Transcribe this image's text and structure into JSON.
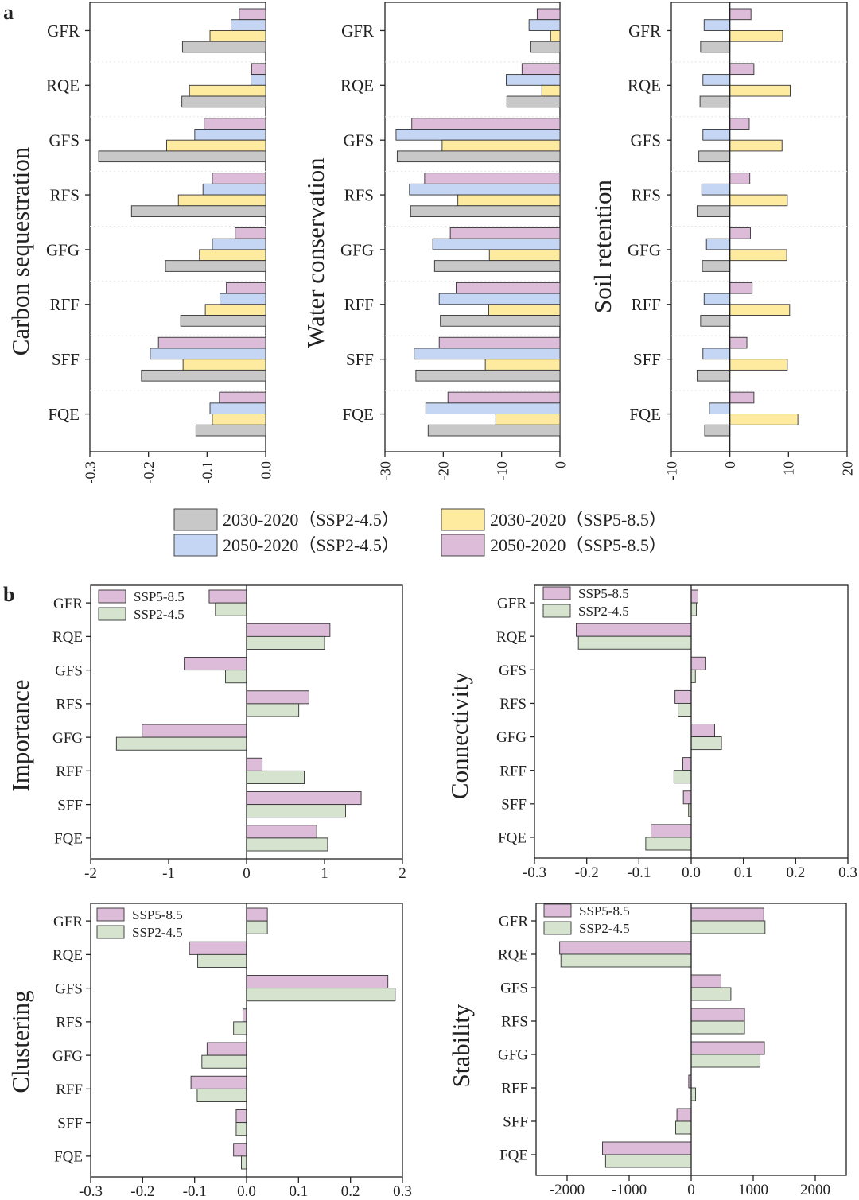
{
  "panel_labels": {
    "a": "a",
    "b": "b"
  },
  "legend_a": [
    {
      "label": "2030-2020（SSP2-4.5）",
      "color": "#c8c8c8"
    },
    {
      "label": "2030-2020（SSP5-8.5）",
      "color": "#ffeba0"
    },
    {
      "label": "2050-2020（SSP2-4.5）",
      "color": "#c5d6f5"
    },
    {
      "label": "2050-2020（SSP5-8.5）",
      "color": "#dcbcd8"
    }
  ],
  "chart_data": [
    {
      "type": "bar",
      "orientation": "horizontal",
      "panel": "a",
      "ylabel": "Carbon sequestration",
      "categories": [
        "GFR",
        "RQE",
        "GFS",
        "RFS",
        "GFG",
        "RFF",
        "SFF",
        "FQE"
      ],
      "xlim": [
        -0.3,
        0.0
      ],
      "xticks": [
        -0.3,
        -0.2,
        -0.1,
        0.0
      ],
      "xtick_labels": [
        "-0.3",
        "-0.2",
        "-0.1",
        "0.0"
      ],
      "series": [
        {
          "name": "2050-2020（SSP5-8.5）",
          "color": "#dcbcd8",
          "values": [
            -0.045,
            -0.024,
            -0.105,
            -0.091,
            -0.052,
            -0.067,
            -0.183,
            -0.079
          ]
        },
        {
          "name": "2050-2020（SSP2-4.5）",
          "color": "#c5d6f5",
          "values": [
            -0.059,
            -0.025,
            -0.121,
            -0.107,
            -0.091,
            -0.078,
            -0.197,
            -0.095
          ]
        },
        {
          "name": "2030-2020（SSP5-8.5）",
          "color": "#ffeba0",
          "values": [
            -0.095,
            -0.13,
            -0.169,
            -0.149,
            -0.113,
            -0.103,
            -0.141,
            -0.091
          ]
        },
        {
          "name": "2030-2020（SSP2-4.5）",
          "color": "#c8c8c8",
          "values": [
            -0.142,
            -0.143,
            -0.285,
            -0.229,
            -0.171,
            -0.145,
            -0.212,
            -0.119
          ]
        }
      ]
    },
    {
      "type": "bar",
      "orientation": "horizontal",
      "panel": "a",
      "ylabel": "Water conservation",
      "categories": [
        "GFR",
        "RQE",
        "GFS",
        "RFS",
        "GFG",
        "RFF",
        "SFF",
        "FQE"
      ],
      "xlim": [
        -30,
        0
      ],
      "xticks": [
        -30,
        -20,
        -10,
        0
      ],
      "xtick_labels": [
        "-30",
        "-20",
        "-10",
        "0"
      ],
      "series": [
        {
          "name": "2050-2020（SSP5-8.5）",
          "color": "#dcbcd8",
          "values": [
            -3.9,
            -6.5,
            -25.4,
            -23.2,
            -18.8,
            -17.8,
            -20.7,
            -19.2
          ]
        },
        {
          "name": "2050-2020（SSP2-4.5）",
          "color": "#c5d6f5",
          "values": [
            -5.3,
            -9.2,
            -28.1,
            -25.8,
            -21.8,
            -20.7,
            -25.0,
            -23.0
          ]
        },
        {
          "name": "2030-2020（SSP5-8.5）",
          "color": "#ffeba0",
          "values": [
            -1.6,
            -3.1,
            -20.2,
            -17.5,
            -12.1,
            -12.2,
            -12.8,
            -11.0
          ]
        },
        {
          "name": "2030-2020（SSP2-4.5）",
          "color": "#c8c8c8",
          "values": [
            -5.1,
            -9.1,
            -27.9,
            -25.6,
            -21.5,
            -20.5,
            -24.7,
            -22.6
          ]
        }
      ]
    },
    {
      "type": "bar",
      "orientation": "horizontal",
      "panel": "a",
      "ylabel": "Soil retention",
      "categories": [
        "GFR",
        "RQE",
        "GFS",
        "RFS",
        "GFG",
        "RFF",
        "SFF",
        "FQE"
      ],
      "xlim": [
        -10,
        20
      ],
      "xticks": [
        -10,
        0,
        10,
        20
      ],
      "xtick_labels": [
        "-10",
        "0",
        "10",
        "20"
      ],
      "series": [
        {
          "name": "2050-2020（SSP5-8.5）",
          "color": "#dcbcd8",
          "values": [
            3.6,
            4.1,
            3.3,
            3.4,
            3.5,
            3.8,
            2.9,
            4.1
          ]
        },
        {
          "name": "2050-2020（SSP2-4.5）",
          "color": "#c5d6f5",
          "values": [
            -4.4,
            -4.6,
            -4.6,
            -4.8,
            -4.0,
            -4.4,
            -4.6,
            -3.5
          ]
        },
        {
          "name": "2030-2020（SSP5-8.5）",
          "color": "#ffeba0",
          "values": [
            9.0,
            10.3,
            8.9,
            9.8,
            9.7,
            10.2,
            9.8,
            11.6
          ]
        },
        {
          "name": "2030-2020（SSP2-4.5）",
          "color": "#c8c8c8",
          "values": [
            -5.0,
            -5.1,
            -5.3,
            -5.6,
            -4.7,
            -5.0,
            -5.6,
            -4.3
          ]
        }
      ]
    },
    {
      "type": "bar",
      "orientation": "horizontal",
      "panel": "b",
      "ylabel": "Importance",
      "categories": [
        "GFR",
        "RQE",
        "GFS",
        "RFS",
        "GFG",
        "RFF",
        "SFF",
        "FQE"
      ],
      "xlim": [
        -2,
        2
      ],
      "xticks": [
        -2,
        -1,
        0,
        1,
        2
      ],
      "xtick_labels": [
        "-2",
        "-1",
        "0",
        "1",
        "2"
      ],
      "legend": [
        "SSP5-8.5",
        "SSP2-4.5"
      ],
      "series": [
        {
          "name": "SSP5-8.5",
          "color": "#dcbcd8",
          "values": [
            -0.48,
            1.07,
            -0.8,
            0.8,
            -1.34,
            0.2,
            1.47,
            0.9
          ]
        },
        {
          "name": "SSP2-4.5",
          "color": "#d5e3cf",
          "values": [
            -0.4,
            1.0,
            -0.27,
            0.67,
            -1.67,
            0.74,
            1.27,
            1.04
          ]
        }
      ]
    },
    {
      "type": "bar",
      "orientation": "horizontal",
      "panel": "b",
      "ylabel": "Connectivity",
      "categories": [
        "GFR",
        "RQE",
        "GFS",
        "RFS",
        "GFG",
        "RFF",
        "SFF",
        "FQE"
      ],
      "xlim": [
        -0.3,
        0.3
      ],
      "xticks": [
        -0.3,
        -0.2,
        -0.1,
        0.0,
        0.1,
        0.2,
        0.3
      ],
      "xtick_labels": [
        "-0.3",
        "-0.2",
        "-0.1",
        "0.0",
        "0.1",
        "0.2",
        "0.3"
      ],
      "legend": [
        "SSP5-8.5",
        "SSP2-4.5"
      ],
      "series": [
        {
          "name": "SSP5-8.5",
          "color": "#dcbcd8",
          "values": [
            0.013,
            -0.22,
            0.028,
            -0.031,
            0.045,
            -0.016,
            -0.015,
            -0.077
          ]
        },
        {
          "name": "SSP2-4.5",
          "color": "#d5e3cf",
          "values": [
            0.01,
            -0.216,
            0.008,
            -0.025,
            0.058,
            -0.033,
            -0.005,
            -0.087
          ]
        }
      ]
    },
    {
      "type": "bar",
      "orientation": "horizontal",
      "panel": "b",
      "ylabel": "Clustering",
      "categories": [
        "GFR",
        "RQE",
        "GFS",
        "RFS",
        "GFG",
        "RFF",
        "SFF",
        "FQE"
      ],
      "xlim": [
        -0.3,
        0.3
      ],
      "xticks": [
        -0.3,
        -0.2,
        -0.1,
        0.0,
        0.1,
        0.2,
        0.3
      ],
      "xtick_labels": [
        "-0.3",
        "-0.2",
        "-0.1",
        "0.0",
        "0.1",
        "0.2",
        "0.3"
      ],
      "legend": [
        "SSP5-8.5",
        "SSP2-4.5"
      ],
      "series": [
        {
          "name": "SSP5-8.5",
          "color": "#dcbcd8",
          "values": [
            0.04,
            -0.11,
            0.272,
            -0.007,
            -0.076,
            -0.107,
            -0.02,
            -0.025
          ]
        },
        {
          "name": "SSP2-4.5",
          "color": "#d5e3cf",
          "values": [
            0.04,
            -0.094,
            0.286,
            -0.025,
            -0.086,
            -0.095,
            -0.02,
            -0.01
          ]
        }
      ]
    },
    {
      "type": "bar",
      "orientation": "horizontal",
      "panel": "b",
      "ylabel": "Stability",
      "categories": [
        "GFR",
        "RQE",
        "GFS",
        "RFS",
        "GFG",
        "RFF",
        "SFF",
        "FQE"
      ],
      "xlim": [
        -2500,
        2500
      ],
      "xticks": [
        -2000,
        -1000,
        0,
        1000,
        2000
      ],
      "xtick_labels": [
        "-2000",
        "-1000",
        "0",
        "1000",
        "2000"
      ],
      "legend": [
        "SSP5-8.5",
        "SSP2-4.5"
      ],
      "series": [
        {
          "name": "SSP5-8.5",
          "color": "#dcbcd8",
          "values": [
            1170,
            -2120,
            480,
            860,
            1180,
            -40,
            -230,
            -1430
          ]
        },
        {
          "name": "SSP2-4.5",
          "color": "#d5e3cf",
          "values": [
            1190,
            -2100,
            640,
            860,
            1110,
            70,
            -250,
            -1380
          ]
        }
      ]
    }
  ]
}
